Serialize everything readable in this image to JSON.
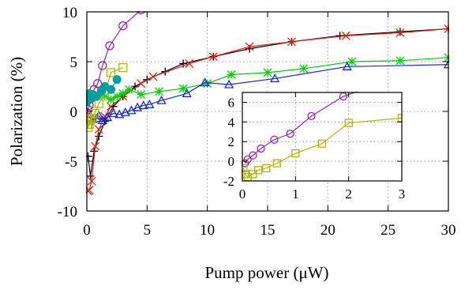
{
  "chart_data": [
    {
      "type": "line",
      "xlabel": "Pump power (μW)",
      "ylabel": "Polarization (%)",
      "xlim": [
        0,
        30
      ],
      "ylim": [
        -10,
        10
      ],
      "xticks": [
        "0",
        "5",
        "10",
        "15",
        "20",
        "25",
        "30"
      ],
      "yticks": [
        "-10",
        "-5",
        "0",
        "5",
        "10"
      ],
      "grid": true,
      "series": [
        {
          "marker": "plus",
          "color": "#000000",
          "x": [
            0.1,
            0.3,
            0.6,
            1.0,
            1.5,
            2.2,
            3.0,
            4.0,
            5.0,
            6.5,
            8.0,
            10.5,
            13.5,
            17.0,
            21.0,
            26.0,
            30.0
          ],
          "y": [
            -4.5,
            -6.5,
            -4.0,
            -2.5,
            -1.0,
            0.5,
            1.5,
            2.5,
            3.2,
            4.0,
            4.8,
            5.5,
            6.3,
            7.0,
            7.6,
            8.0,
            8.3
          ]
        },
        {
          "marker": "x",
          "color": "#e51e10",
          "x": [
            0.1,
            0.2,
            0.4,
            0.7,
            1.0,
            1.5,
            2.0,
            3.0,
            4.5,
            5.5,
            8.5,
            10.5,
            13.5,
            17.0,
            21.5,
            26.0,
            30.0
          ],
          "y": [
            -8.0,
            -7.9,
            -7.0,
            -3.5,
            -1.8,
            -0.5,
            0.5,
            1.5,
            2.8,
            3.5,
            4.8,
            5.5,
            6.5,
            7.0,
            7.6,
            7.9,
            8.3
          ]
        },
        {
          "marker": "star",
          "color": "#00d200",
          "x": [
            1.5,
            2.0,
            2.5,
            3.0,
            3.5,
            4.5,
            6.0,
            8.0,
            10.0,
            12.0,
            15.0,
            18.0,
            22.0,
            26.0,
            30.0
          ],
          "y": [
            1.5,
            1.2,
            1.5,
            1.8,
            2.2,
            1.7,
            2.0,
            2.3,
            2.8,
            3.7,
            3.9,
            4.3,
            5.0,
            5.1,
            5.4
          ]
        },
        {
          "marker": "triangle",
          "color": "#1428dc",
          "x": [
            0.2,
            0.5,
            0.8,
            1.0,
            1.3,
            1.7,
            2.2,
            2.7,
            3.2,
            3.7,
            4.2,
            4.7,
            5.2,
            6.2,
            8.3,
            9.8,
            11.8,
            15.6,
            21.6,
            30.0
          ],
          "y": [
            -0.6,
            -0.8,
            -0.7,
            -0.4,
            -0.9,
            -0.6,
            -0.2,
            -0.3,
            -0.1,
            0.1,
            0.4,
            0.6,
            0.7,
            1.1,
            1.8,
            2.9,
            2.7,
            3.3,
            4.5,
            4.7
          ]
        },
        {
          "marker": "circle",
          "color": "#a020b4",
          "x": [
            0.05,
            0.1,
            0.2,
            0.35,
            0.6,
            0.9,
            1.3,
            1.9,
            3.0,
            4.5
          ],
          "y": [
            -0.2,
            0.2,
            0.6,
            1.3,
            2.2,
            2.8,
            4.6,
            6.6,
            8.6,
            10.2
          ]
        },
        {
          "marker": "square",
          "color": "#b4b400",
          "x": [
            0.02,
            0.05,
            0.1,
            0.2,
            0.3,
            0.45,
            0.65,
            1.0,
            1.5,
            2.0,
            3.0
          ],
          "y": [
            -0.7,
            -1.3,
            -1.6,
            -1.3,
            -0.9,
            -0.7,
            -0.2,
            0.8,
            1.8,
            3.9,
            4.4
          ]
        },
        {
          "marker": "filled-circle",
          "color": "#00a0a0",
          "x": [
            0.05,
            0.1,
            0.2,
            0.3,
            0.5,
            0.8,
            1.2,
            1.5,
            2.0,
            2.5
          ],
          "y": [
            1.0,
            1.5,
            1.8,
            1.3,
            1.7,
            1.5,
            2.0,
            2.5,
            2.2,
            3.2
          ]
        }
      ]
    },
    {
      "type": "line",
      "inset": true,
      "xlim": [
        0,
        3
      ],
      "ylim": [
        -2,
        7
      ],
      "xticks": [
        "0",
        "1",
        "2",
        "3"
      ],
      "yticks": [
        "-2",
        "0",
        "2",
        "4",
        "6"
      ],
      "grid": true,
      "series": [
        {
          "marker": "circle",
          "color": "#a020b4",
          "x": [
            0.05,
            0.1,
            0.2,
            0.35,
            0.6,
            0.9,
            1.3,
            1.9,
            3.0
          ],
          "y": [
            -0.2,
            0.2,
            0.6,
            1.3,
            2.2,
            2.8,
            4.6,
            6.6,
            8.6
          ]
        },
        {
          "marker": "square",
          "color": "#b4b400",
          "x": [
            0.02,
            0.05,
            0.1,
            0.2,
            0.3,
            0.45,
            0.65,
            1.0,
            1.5,
            2.0,
            3.0
          ],
          "y": [
            -0.7,
            -1.3,
            -1.6,
            -1.3,
            -0.9,
            -0.7,
            -0.2,
            0.8,
            1.8,
            3.9,
            4.4
          ]
        }
      ]
    }
  ]
}
